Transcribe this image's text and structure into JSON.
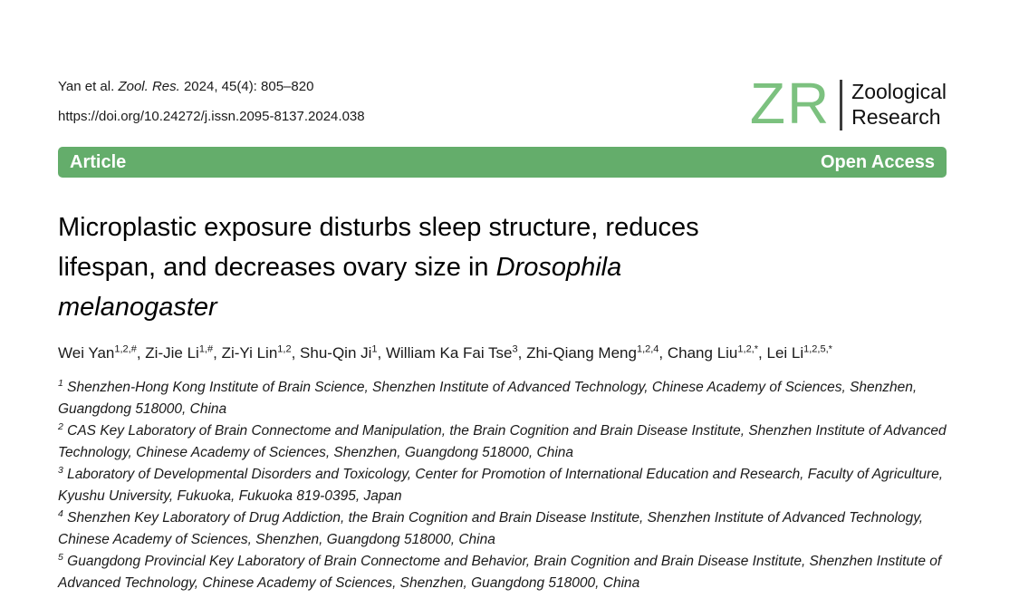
{
  "header": {
    "citation_segments": [
      {
        "t": "Yan et al. ",
        "i": false
      },
      {
        "t": "Zool. Res.",
        "i": true
      },
      {
        "t": " 2024, 45(4): 805–820",
        "i": false
      }
    ],
    "doi": "https://doi.org/10.24272/j.issn.2095-8137.2024.038",
    "logo": {
      "mark": "ZR",
      "name_lines": [
        "Zoological",
        "Research"
      ]
    }
  },
  "type_bar": {
    "left_label": "Article",
    "right_label": "Open Access"
  },
  "title_lines": [
    [
      {
        "t": "Microplastic exposure disturbs sleep structure, reduces",
        "i": false
      }
    ],
    [
      {
        "t": "lifespan, and decreases ovary size in ",
        "i": false
      },
      {
        "t": "Drosophila",
        "i": true
      }
    ],
    [
      {
        "t": "melanogaster",
        "i": true
      }
    ]
  ],
  "authors": [
    {
      "name": "Wei Yan",
      "sup": "1,2,#"
    },
    {
      "name": "Zi-Jie Li",
      "sup": "1,#"
    },
    {
      "name": "Zi-Yi Lin",
      "sup": "1,2"
    },
    {
      "name": "Shu-Qin Ji",
      "sup": "1"
    },
    {
      "name": "William Ka Fai Tse",
      "sup": "3"
    },
    {
      "name": "Zhi-Qiang Meng",
      "sup": "1,2,4"
    },
    {
      "name": "Chang Liu",
      "sup": "1,2,*"
    },
    {
      "name": "Lei Li",
      "sup": "1,2,5,*"
    }
  ],
  "affiliations": [
    {
      "sup": "1",
      "text": "Shenzhen-Hong Kong Institute of Brain Science, Shenzhen Institute of Advanced Technology, Chinese Academy of Sciences, Shenzhen, Guangdong 518000, China"
    },
    {
      "sup": "2",
      "text": "CAS Key Laboratory of Brain Connectome and Manipulation, the Brain Cognition and Brain Disease Institute, Shenzhen Institute of Advanced Technology, Chinese Academy of Sciences, Shenzhen, Guangdong 518000, China"
    },
    {
      "sup": "3",
      "text": "Laboratory of Developmental Disorders and Toxicology, Center for Promotion of International Education and Research, Faculty of Agriculture, Kyushu University, Fukuoka, Fukuoka 819-0395, Japan"
    },
    {
      "sup": "4",
      "text": "Shenzhen Key Laboratory of Drug Addiction, the Brain Cognition and Brain Disease Institute, Shenzhen Institute of Advanced Technology, Chinese Academy of Sciences, Shenzhen, Guangdong 518000, China"
    },
    {
      "sup": "5",
      "text": "Guangdong Provincial Key Laboratory of Brain Connectome and Behavior, Brain Cognition and Brain Disease Institute, Shenzhen Institute of Advanced Technology, Chinese Academy of Sciences, Shenzhen, Guangdong 518000, China"
    }
  ],
  "colors": {
    "accent_green": "#64ad6b",
    "logo_green": "#7cc17f",
    "text": "#1a1a1a"
  }
}
